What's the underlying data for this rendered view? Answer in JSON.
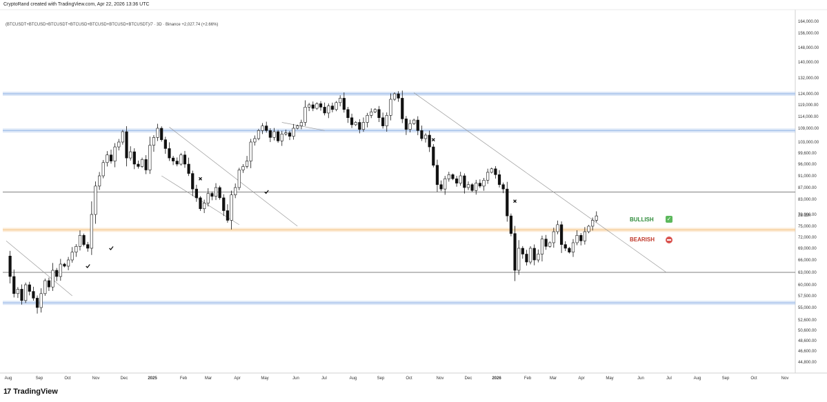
{
  "header": {
    "attribution": "CryptoRand created with TradingView.com, Apr 22, 2026 13:36 UTC",
    "symbol": "(BTCUSDT+BTCUSD+BTCUSDT+BTCUSD+BTCUSD+BTCUSD+BTCUSDT)/7 · 3D · Binance  +2,027.74 (+2.66%)"
  },
  "footer": {
    "brand": "TradingView"
  },
  "legend": {
    "bullish": "BULLISH",
    "bearish": "BEARISH"
  },
  "timer": "2d 11h",
  "colors": {
    "blue_zone": "#9bbbe8",
    "orange_zone": "#f5c78a",
    "candle_up": "#ffffff",
    "candle_down": "#111111",
    "level_line": "#555555",
    "trend_line": "#9a9a9a"
  },
  "chart_data": {
    "type": "candlestick",
    "y_ticks": [
      "164,000.00",
      "156,000.00",
      "148,000.00",
      "140,000.00",
      "132,000.00",
      "124,000.00",
      "119,000.00",
      "114,000.00",
      "109,000.00",
      "103,000.00",
      "99,600.00",
      "96,000.00",
      "91,000.00",
      "87,000.00",
      "83,000.00",
      "79,000.00",
      "75,000.00",
      "72,000.00",
      "69,000.00",
      "66,000.00",
      "63,000.00",
      "60,000.00",
      "57,500.00",
      "55,000.00",
      "52,600.00",
      "50,600.00",
      "48,600.00",
      "46,600.00",
      "44,800.00"
    ],
    "x_ticks": [
      {
        "label": "Aug",
        "bold": false
      },
      {
        "label": "Sep",
        "bold": false
      },
      {
        "label": "Oct",
        "bold": false
      },
      {
        "label": "Nov",
        "bold": false
      },
      {
        "label": "Dec",
        "bold": false
      },
      {
        "label": "2025",
        "bold": true
      },
      {
        "label": "Feb",
        "bold": false
      },
      {
        "label": "Mar",
        "bold": false
      },
      {
        "label": "Apr",
        "bold": false
      },
      {
        "label": "May",
        "bold": false
      },
      {
        "label": "Jun",
        "bold": false
      },
      {
        "label": "Jul",
        "bold": false
      },
      {
        "label": "Aug",
        "bold": false
      },
      {
        "label": "Sep",
        "bold": false
      },
      {
        "label": "Oct",
        "bold": false
      },
      {
        "label": "Nov",
        "bold": false
      },
      {
        "label": "Dec",
        "bold": false
      },
      {
        "label": "2026",
        "bold": true
      },
      {
        "label": "Feb",
        "bold": false
      },
      {
        "label": "Mar",
        "bold": false
      },
      {
        "label": "Apr",
        "bold": false
      },
      {
        "label": "May",
        "bold": false
      },
      {
        "label": "Jun",
        "bold": false
      },
      {
        "label": "Jul",
        "bold": false
      },
      {
        "label": "Aug",
        "bold": false
      },
      {
        "label": "Sep",
        "bold": false
      },
      {
        "label": "Oct",
        "bold": false
      },
      {
        "label": "Nov",
        "bold": false
      }
    ],
    "horizontal_zones": [
      {
        "name": "resistance-124k",
        "value": 124000,
        "color": "blue"
      },
      {
        "name": "resistance-108k",
        "value": 108000,
        "color": "blue"
      },
      {
        "name": "support-74k",
        "value": 74000,
        "color": "orange"
      },
      {
        "name": "support-56k",
        "value": 56000,
        "color": "blue"
      }
    ],
    "horizontal_lines": [
      85500,
      63000
    ],
    "price_path": [
      [
        0,
        67000
      ],
      [
        1,
        62000
      ],
      [
        2,
        58000
      ],
      [
        3,
        59000
      ],
      [
        4,
        56500
      ],
      [
        5,
        60000
      ],
      [
        6,
        58500
      ],
      [
        7,
        57000
      ],
      [
        8,
        55000
      ],
      [
        9,
        58000
      ],
      [
        10,
        61000
      ],
      [
        11,
        59500
      ],
      [
        12,
        63500
      ],
      [
        13,
        62000
      ],
      [
        14,
        65000
      ],
      [
        15,
        64500
      ],
      [
        16,
        66000
      ],
      [
        17,
        68000
      ],
      [
        18,
        69500
      ],
      [
        19,
        72500
      ],
      [
        20,
        70000
      ],
      [
        21,
        69000
      ],
      [
        22,
        79000
      ],
      [
        23,
        87500
      ],
      [
        24,
        91000
      ],
      [
        25,
        96500
      ],
      [
        26,
        99000
      ],
      [
        27,
        97000
      ],
      [
        28,
        101500
      ],
      [
        29,
        103000
      ],
      [
        30,
        107500
      ],
      [
        31,
        98000
      ],
      [
        32,
        100000
      ],
      [
        33,
        96000
      ],
      [
        34,
        95000
      ],
      [
        35,
        97500
      ],
      [
        36,
        93500
      ],
      [
        37,
        102000
      ],
      [
        38,
        105000
      ],
      [
        39,
        109000
      ],
      [
        40,
        104000
      ],
      [
        41,
        101000
      ],
      [
        42,
        98000
      ],
      [
        43,
        97000
      ],
      [
        44,
        96000
      ],
      [
        45,
        99000
      ],
      [
        46,
        96000
      ],
      [
        47,
        92000
      ],
      [
        48,
        86500
      ],
      [
        49,
        83500
      ],
      [
        50,
        80500
      ],
      [
        51,
        82000
      ],
      [
        52,
        85000
      ],
      [
        53,
        84000
      ],
      [
        54,
        87000
      ],
      [
        55,
        83500
      ],
      [
        56,
        80000
      ],
      [
        57,
        77000
      ],
      [
        58,
        84500
      ],
      [
        59,
        87000
      ],
      [
        60,
        93500
      ],
      [
        61,
        95000
      ],
      [
        62,
        97000
      ],
      [
        63,
        103000
      ],
      [
        64,
        104500
      ],
      [
        65,
        108000
      ],
      [
        66,
        110000
      ],
      [
        67,
        108000
      ],
      [
        68,
        105000
      ],
      [
        69,
        107500
      ],
      [
        70,
        103500
      ],
      [
        71,
        106500
      ],
      [
        72,
        107000
      ],
      [
        73,
        105500
      ],
      [
        74,
        109000
      ],
      [
        75,
        110000
      ],
      [
        76,
        111500
      ],
      [
        77,
        118000
      ],
      [
        78,
        119000
      ],
      [
        79,
        117500
      ],
      [
        80,
        119500
      ],
      [
        81,
        118000
      ],
      [
        82,
        115500
      ],
      [
        83,
        118500
      ],
      [
        84,
        117000
      ],
      [
        85,
        120000
      ],
      [
        86,
        122000
      ],
      [
        87,
        117000
      ],
      [
        88,
        113500
      ],
      [
        89,
        110500
      ],
      [
        90,
        111500
      ],
      [
        91,
        108500
      ],
      [
        92,
        111500
      ],
      [
        93,
        114500
      ],
      [
        94,
        116000
      ],
      [
        95,
        117000
      ],
      [
        96,
        113500
      ],
      [
        97,
        110000
      ],
      [
        98,
        114500
      ],
      [
        99,
        121500
      ],
      [
        100,
        124000
      ],
      [
        101,
        122000
      ],
      [
        102,
        113000
      ],
      [
        103,
        108500
      ],
      [
        104,
        111000
      ],
      [
        105,
        112500
      ],
      [
        106,
        108000
      ],
      [
        107,
        104500
      ],
      [
        108,
        106000
      ],
      [
        109,
        101500
      ],
      [
        110,
        95500
      ],
      [
        111,
        88000
      ],
      [
        112,
        86500
      ],
      [
        113,
        90000
      ],
      [
        114,
        91500
      ],
      [
        115,
        90000
      ],
      [
        116,
        88500
      ],
      [
        117,
        91000
      ],
      [
        118,
        87000
      ],
      [
        119,
        88000
      ],
      [
        120,
        86000
      ],
      [
        121,
        88500
      ],
      [
        122,
        87500
      ],
      [
        123,
        89500
      ],
      [
        124,
        92500
      ],
      [
        125,
        94000
      ],
      [
        126,
        91500
      ],
      [
        127,
        88000
      ],
      [
        128,
        86500
      ],
      [
        129,
        78500
      ],
      [
        130,
        73000
      ],
      [
        131,
        63500
      ],
      [
        132,
        69000
      ],
      [
        133,
        67500
      ],
      [
        134,
        65500
      ],
      [
        135,
        69000
      ],
      [
        136,
        66000
      ],
      [
        137,
        67500
      ],
      [
        138,
        71500
      ],
      [
        139,
        69500
      ],
      [
        140,
        70500
      ],
      [
        141,
        73500
      ],
      [
        142,
        75500
      ],
      [
        143,
        70000
      ],
      [
        144,
        69000
      ],
      [
        145,
        68000
      ],
      [
        146,
        70500
      ],
      [
        147,
        72500
      ],
      [
        148,
        71000
      ],
      [
        149,
        73500
      ],
      [
        150,
        75000
      ],
      [
        151,
        77000
      ],
      [
        152,
        78500
      ]
    ],
    "markers": [
      {
        "type": "check",
        "index": 27,
        "value": 69000
      },
      {
        "type": "check",
        "index": 21,
        "value": 64500
      },
      {
        "type": "check",
        "index": 67,
        "value": 85500
      },
      {
        "type": "cross",
        "index": 50,
        "value": 90000
      },
      {
        "type": "cross",
        "index": 110,
        "value": 104000
      },
      {
        "type": "cross",
        "index": 131,
        "value": 82500
      }
    ],
    "trend_lines": [
      {
        "name": "early-descending-channel",
        "from": [
          0,
          71000
        ],
        "to": [
          17,
          57500
        ]
      },
      {
        "name": "descending-channel-upper",
        "from": [
          42,
          109500
        ],
        "to": [
          75,
          75000
        ]
      },
      {
        "name": "descending-channel-lower",
        "from": [
          40,
          91000
        ],
        "to": [
          60,
          75500
        ]
      },
      {
        "name": "mid-2025-channel",
        "from": [
          71,
          111500
        ],
        "to": [
          82,
          108000
        ]
      },
      {
        "name": "major-downtrend",
        "from": [
          105,
          124500
        ],
        "to": [
          170,
          63000
        ]
      }
    ]
  }
}
